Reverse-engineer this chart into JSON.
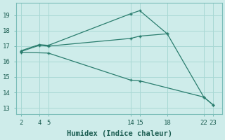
{
  "line1_x": [
    2,
    4,
    5,
    14,
    15,
    18
  ],
  "line1_y": [
    16.7,
    17.1,
    17.05,
    19.1,
    19.3,
    17.8
  ],
  "line2_x": [
    2,
    4,
    5,
    14,
    15,
    18,
    22,
    23
  ],
  "line2_y": [
    16.65,
    17.05,
    17.0,
    17.5,
    17.65,
    17.8,
    13.7,
    13.2
  ],
  "line3_x": [
    2,
    5,
    14,
    15,
    22,
    23
  ],
  "line3_y": [
    16.6,
    16.55,
    14.8,
    14.75,
    13.7,
    13.2
  ],
  "line_color": "#2a7d6e",
  "bg_color": "#ceecea",
  "grid_color": "#a8d8d4",
  "xlabel": "Humidex (Indice chaleur)",
  "xticks": [
    2,
    4,
    5,
    14,
    15,
    18,
    22,
    23
  ],
  "yticks": [
    13,
    14,
    15,
    16,
    17,
    18,
    19
  ],
  "xlim": [
    1.5,
    24
  ],
  "ylim": [
    12.6,
    19.8
  ]
}
